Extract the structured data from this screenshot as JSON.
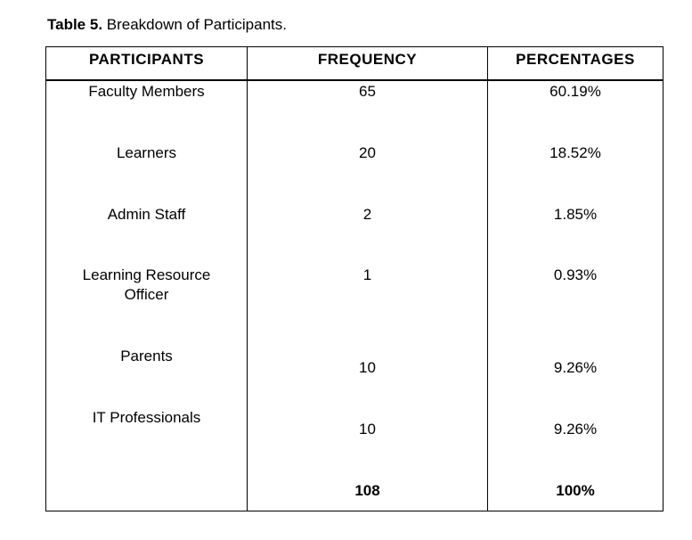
{
  "caption": {
    "label": "Table 5.",
    "text": " Breakdown of Participants."
  },
  "table": {
    "headers": [
      "PARTICIPANTS",
      "FREQUENCY",
      "PERCENTAGES"
    ],
    "rows": [
      {
        "participant": "Faculty Members",
        "frequency": "65",
        "percentage": "60.19%"
      },
      {
        "participant": "Learners",
        "frequency": "20",
        "percentage": "18.52%"
      },
      {
        "participant": "Admin Staff",
        "frequency": "2",
        "percentage": "1.85%"
      },
      {
        "participant_line1": "Learning Resource",
        "participant_line2": "Officer",
        "frequency": "1",
        "percentage": "0.93%"
      },
      {
        "participant": "Parents",
        "frequency": "10",
        "percentage": "9.26%"
      },
      {
        "participant": "IT Professionals",
        "frequency": "10",
        "percentage": "9.26%"
      }
    ],
    "total": {
      "frequency": "108",
      "percentage": "100%"
    }
  }
}
